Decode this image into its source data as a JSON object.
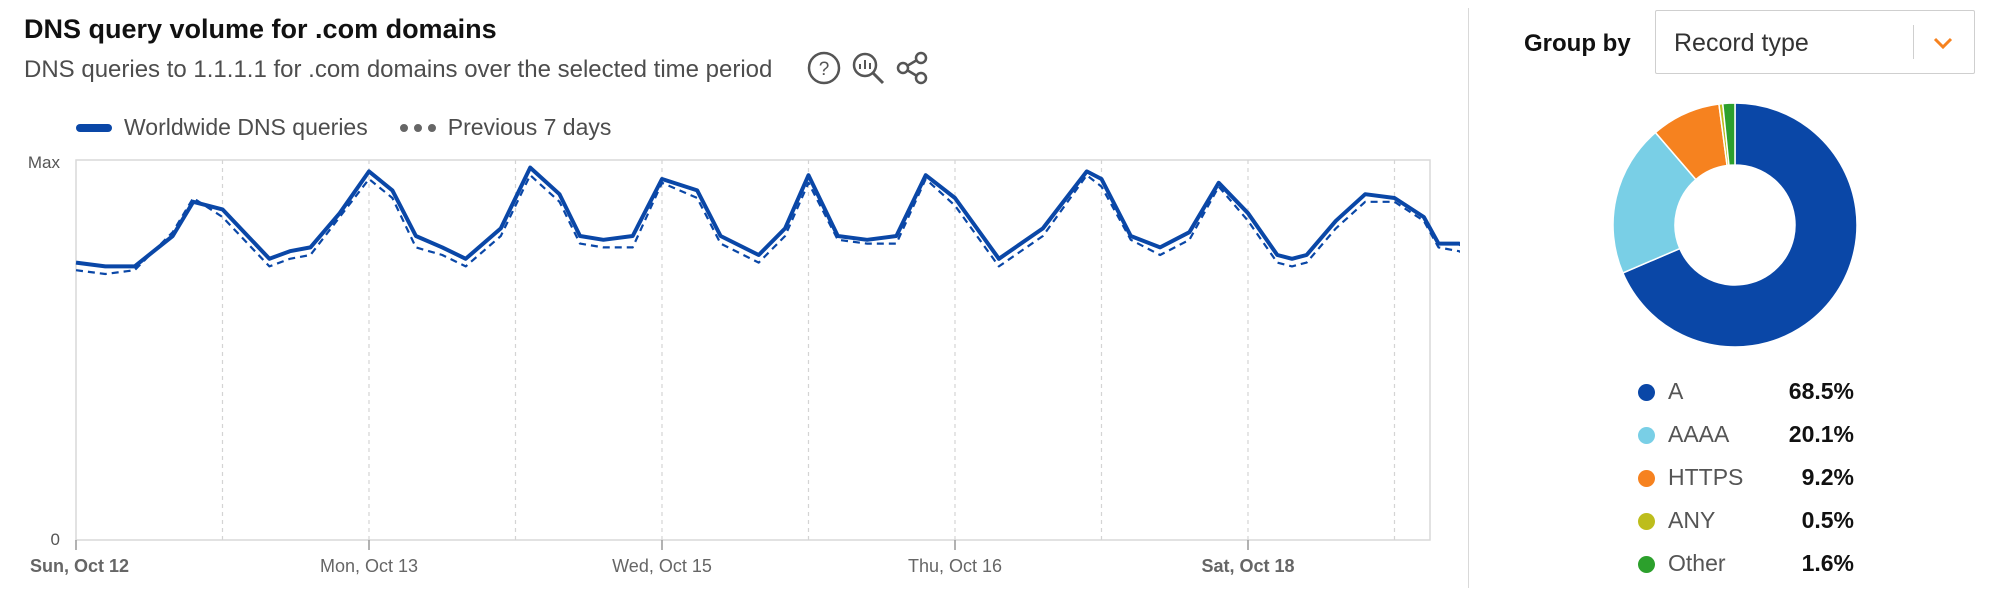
{
  "header": {
    "title": "DNS query volume for .com domains",
    "subtitle": "DNS queries to 1.1.1.1 for .com domains over the selected time period",
    "icons": [
      "help-icon",
      "zoom-icon",
      "share-icon"
    ]
  },
  "group_by": {
    "label": "Group by",
    "selected": "Record type"
  },
  "colors": {
    "primary_line": "#0a47a7",
    "previous_line": "#0a47a7",
    "accent": "#f6821f",
    "grid": "#d4d4d4"
  },
  "chart_data": [
    {
      "type": "line",
      "title": "DNS query volume for .com domains",
      "subtitle": "DNS queries to 1.1.1.1 for .com domains over the selected time period",
      "y_tick_labels": [
        "Max",
        "0"
      ],
      "ylim": [
        0,
        100
      ],
      "xlim": [
        0,
        7
      ],
      "x_ticks": [
        {
          "x": 0,
          "label": "Sun, Oct 12",
          "bold": true
        },
        {
          "x": 1,
          "label": "Mon, Oct 13",
          "bold": false
        },
        {
          "x": 2,
          "label": "Wed, Oct 15",
          "bold": false
        },
        {
          "x": 3,
          "label": "Thu, Oct 16",
          "bold": false
        },
        {
          "x": 4,
          "label": "Sat, Oct 18",
          "bold": true
        }
      ],
      "grid": "vertical dashed",
      "legend_position": "top-left",
      "series": [
        {
          "name": "Worldwide DNS queries",
          "style": "solid",
          "x": [
            0,
            0.1,
            0.2,
            0.33,
            0.4,
            0.5,
            0.66,
            0.73,
            0.8,
            0.9,
            1.0,
            1.08,
            1.16,
            1.25,
            1.33,
            1.45,
            1.55,
            1.65,
            1.72,
            1.8,
            1.9,
            2.0,
            2.12,
            2.2,
            2.33,
            2.42,
            2.5,
            2.6,
            2.7,
            2.8,
            2.9,
            3.0,
            3.15,
            3.3,
            3.45,
            3.5,
            3.6,
            3.7,
            3.8,
            3.9,
            4.0,
            4.1,
            4.15,
            4.2,
            4.3,
            4.4,
            4.5,
            4.6,
            4.65,
            4.72,
            4.75
          ],
          "values": [
            73,
            72,
            72,
            80,
            89,
            87,
            74,
            76,
            77,
            86,
            97,
            92,
            80,
            77,
            74,
            82,
            98,
            91,
            80,
            79,
            80,
            95,
            92,
            80,
            75,
            82,
            96,
            80,
            79,
            80,
            96,
            90,
            74,
            82,
            97,
            95,
            80,
            77,
            81,
            94,
            86,
            75,
            74,
            75,
            84,
            91,
            90,
            85,
            78,
            78,
            77
          ]
        },
        {
          "name": "Previous 7 days",
          "style": "dashed",
          "x": [
            0,
            0.1,
            0.2,
            0.33,
            0.4,
            0.5,
            0.66,
            0.73,
            0.8,
            0.9,
            1.0,
            1.08,
            1.16,
            1.25,
            1.33,
            1.45,
            1.55,
            1.65,
            1.72,
            1.8,
            1.9,
            2.0,
            2.12,
            2.2,
            2.33,
            2.42,
            2.5,
            2.6,
            2.7,
            2.8,
            2.9,
            3.0,
            3.15,
            3.3,
            3.45,
            3.5,
            3.6,
            3.7,
            3.8,
            3.9,
            4.0,
            4.1,
            4.15,
            4.2,
            4.3,
            4.4,
            4.5,
            4.6,
            4.65,
            4.72,
            4.75
          ],
          "values": [
            71,
            70,
            71,
            81,
            90,
            85,
            72,
            74,
            75,
            85,
            95,
            90,
            77,
            75,
            72,
            80,
            96,
            89,
            78,
            77,
            77,
            94,
            90,
            78,
            73,
            80,
            94,
            79,
            78,
            78,
            95,
            88,
            72,
            80,
            96,
            93,
            79,
            75,
            79,
            93,
            84,
            73,
            72,
            73,
            82,
            89,
            89,
            84,
            77,
            76,
            75
          ]
        }
      ]
    },
    {
      "type": "pie",
      "categories": [
        "A",
        "AAAA",
        "HTTPS",
        "ANY",
        "Other"
      ],
      "values": [
        68.5,
        20.1,
        9.2,
        0.5,
        1.6
      ],
      "labels": [
        "68.5%",
        "20.1%",
        "9.2%",
        "0.5%",
        "1.6%"
      ],
      "colors": [
        "#0a47a7",
        "#79cfe6",
        "#f6821f",
        "#bdbd1c",
        "#2ca02c"
      ],
      "donut": true
    }
  ]
}
